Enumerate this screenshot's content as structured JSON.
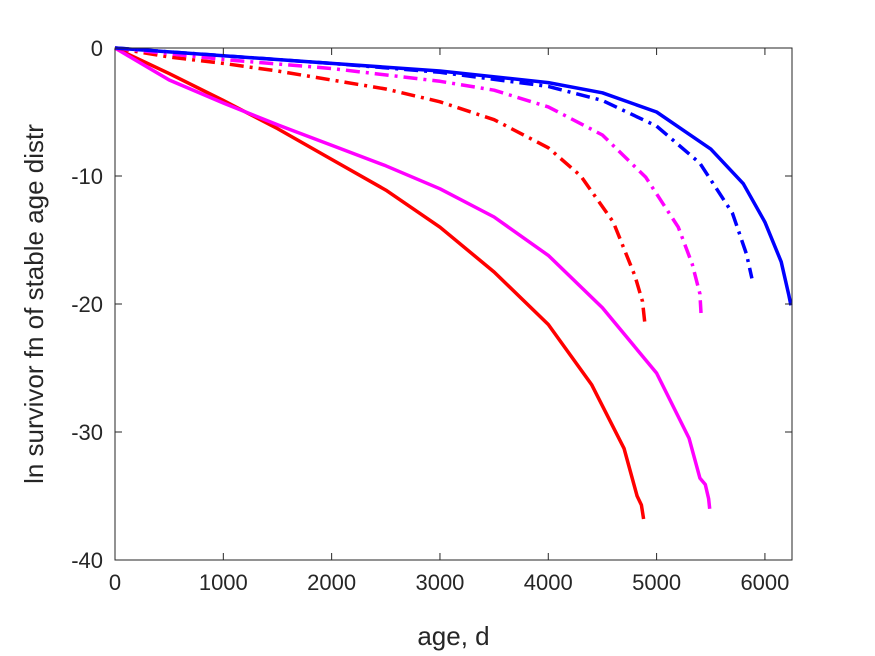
{
  "chart_data": {
    "type": "line",
    "title": "",
    "xlabel": "age, d",
    "ylabel": "ln survivor fn of stable age distr",
    "xlim": [
      0,
      6250
    ],
    "ylim": [
      -40,
      0
    ],
    "xticks": [
      0,
      1000,
      2000,
      3000,
      4000,
      5000,
      6000
    ],
    "yticks": [
      0,
      -10,
      -20,
      -30,
      -40
    ],
    "xtick_labels": [
      "0",
      "1000",
      "2000",
      "3000",
      "4000",
      "5000",
      "6000"
    ],
    "ytick_labels": [
      "0",
      "-10",
      "-20",
      "-30",
      "-40"
    ],
    "grid": false,
    "legend": "none",
    "series": [
      {
        "color": "#ff0000",
        "style": "solid",
        "points": [
          [
            0,
            0
          ],
          [
            500,
            -2
          ],
          [
            1000,
            -4.1
          ],
          [
            1500,
            -6.3
          ],
          [
            2000,
            -8.7
          ],
          [
            2500,
            -11.1
          ],
          [
            3000,
            -14.0
          ],
          [
            3500,
            -17.5
          ],
          [
            4000,
            -21.6
          ],
          [
            4400,
            -26.3
          ],
          [
            4700,
            -31.3
          ],
          [
            4820,
            -35.0
          ],
          [
            4860,
            -35.7
          ],
          [
            4880,
            -36.8
          ]
        ]
      },
      {
        "color": "#ff00ff",
        "style": "solid",
        "points": [
          [
            0,
            0
          ],
          [
            500,
            -2.5
          ],
          [
            1000,
            -4.3
          ],
          [
            1500,
            -6.0
          ],
          [
            2000,
            -7.6
          ],
          [
            2500,
            -9.2
          ],
          [
            3000,
            -11.0
          ],
          [
            3500,
            -13.2
          ],
          [
            4000,
            -16.2
          ],
          [
            4500,
            -20.3
          ],
          [
            5000,
            -25.4
          ],
          [
            5300,
            -30.5
          ],
          [
            5400,
            -33.6
          ],
          [
            5450,
            -34.1
          ],
          [
            5480,
            -35.2
          ],
          [
            5490,
            -36.0
          ]
        ]
      },
      {
        "color": "#0000ff",
        "style": "solid",
        "points": [
          [
            0,
            0
          ],
          [
            1000,
            -0.6
          ],
          [
            2000,
            -1.2
          ],
          [
            3000,
            -1.8
          ],
          [
            4000,
            -2.7
          ],
          [
            4500,
            -3.5
          ],
          [
            5000,
            -5.0
          ],
          [
            5500,
            -7.9
          ],
          [
            5800,
            -10.6
          ],
          [
            6000,
            -13.6
          ],
          [
            6150,
            -16.7
          ],
          [
            6220,
            -19.3
          ],
          [
            6240,
            -20.1
          ]
        ]
      },
      {
        "color": "#ff0000",
        "style": "dashdot",
        "points": [
          [
            0,
            0
          ],
          [
            500,
            -0.7
          ],
          [
            1000,
            -1.2
          ],
          [
            1500,
            -1.8
          ],
          [
            2000,
            -2.5
          ],
          [
            2500,
            -3.2
          ],
          [
            3000,
            -4.2
          ],
          [
            3500,
            -5.6
          ],
          [
            4000,
            -7.8
          ],
          [
            4300,
            -10.0
          ],
          [
            4600,
            -13.6
          ],
          [
            4800,
            -17.8
          ],
          [
            4870,
            -19.8
          ],
          [
            4890,
            -21.4
          ]
        ]
      },
      {
        "color": "#ff00ff",
        "style": "dashdot",
        "points": [
          [
            0,
            0
          ],
          [
            1000,
            -0.9
          ],
          [
            2000,
            -1.6
          ],
          [
            3000,
            -2.6
          ],
          [
            3500,
            -3.3
          ],
          [
            4000,
            -4.6
          ],
          [
            4500,
            -6.8
          ],
          [
            4900,
            -10.1
          ],
          [
            5200,
            -14.0
          ],
          [
            5330,
            -16.9
          ],
          [
            5400,
            -19.2
          ],
          [
            5410,
            -20.7
          ]
        ]
      },
      {
        "color": "#0000ff",
        "style": "dashdot",
        "points": [
          [
            0,
            0
          ],
          [
            1000,
            -0.6
          ],
          [
            2000,
            -1.2
          ],
          [
            3000,
            -1.9
          ],
          [
            4000,
            -3.0
          ],
          [
            4500,
            -4.1
          ],
          [
            5000,
            -6.1
          ],
          [
            5400,
            -9.0
          ],
          [
            5700,
            -12.9
          ],
          [
            5830,
            -16.1
          ],
          [
            5880,
            -18.0
          ]
        ]
      }
    ]
  }
}
